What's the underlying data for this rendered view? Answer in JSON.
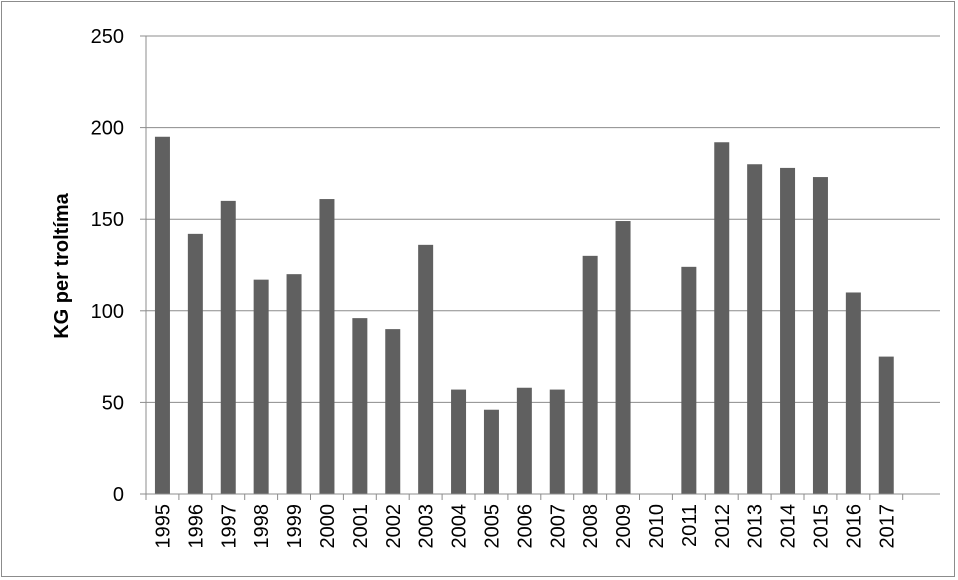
{
  "chart_data": {
    "type": "bar",
    "title": "",
    "xlabel": "",
    "ylabel": "KG per troltíma",
    "categories": [
      "1995",
      "1996",
      "1997",
      "1998",
      "1999",
      "2000",
      "2001",
      "2002",
      "2003",
      "2004",
      "2005",
      "2006",
      "2007",
      "2008",
      "2009",
      "2010",
      "2011",
      "2012",
      "2013",
      "2014",
      "2015",
      "2016",
      "2017"
    ],
    "values": [
      195,
      142,
      160,
      117,
      120,
      161,
      96,
      90,
      136,
      57,
      46,
      58,
      57,
      130,
      149,
      0,
      124,
      192,
      180,
      178,
      173,
      110,
      75
    ],
    "ylim": [
      0,
      250
    ],
    "yticks": [
      0,
      50,
      100,
      150,
      200,
      250
    ],
    "grid": true,
    "bar_color": "#606060",
    "grid_color": "#8c8c8c"
  }
}
